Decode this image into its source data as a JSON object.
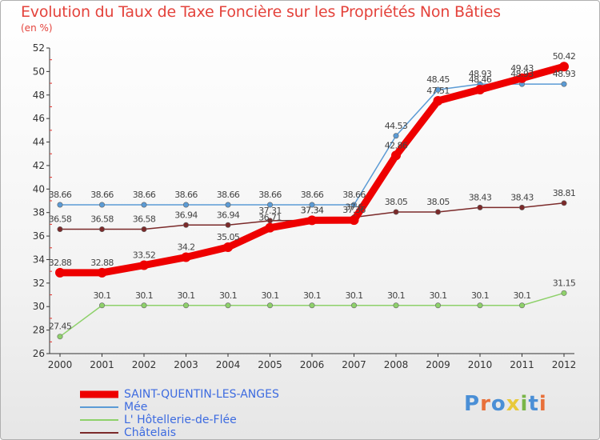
{
  "title": "Evolution du Taux de Taxe Foncière sur les Propriétés Non Bâties",
  "subtitle": "(en %)",
  "logo": {
    "text": "Proxiti",
    "colors": [
      "#4a8fd6",
      "#e8703a",
      "#4a8fd6",
      "#e8c93a",
      "#7ab648",
      "#4a8fd6",
      "#e8703a"
    ]
  },
  "chart_data": {
    "type": "line",
    "title": "Evolution du Taux de Taxe Foncière sur les Propriétés Non Bâties",
    "ylabel": "(en %)",
    "x": [
      "2000",
      "2001",
      "2002",
      "2003",
      "2004",
      "2005",
      "2006",
      "2007",
      "2008",
      "2009",
      "2010",
      "2011",
      "2012"
    ],
    "ylim": [
      26,
      52
    ],
    "yticks": [
      26,
      28,
      30,
      32,
      34,
      36,
      38,
      40,
      42,
      44,
      46,
      48,
      50,
      52
    ],
    "grid": false,
    "legend_position": "bottom-left",
    "series": [
      {
        "name": "SAINT-QUENTIN-LES-ANGES",
        "color": "#ee0000",
        "width": "thick",
        "values": [
          32.88,
          32.88,
          33.52,
          34.2,
          35.05,
          36.71,
          37.34,
          37.36,
          42.86,
          47.51,
          48.46,
          49.43,
          50.42
        ],
        "labels": [
          "32.88",
          "32.88",
          "33.52",
          "34.2",
          "35.05",
          "36.71",
          "37.34",
          "37.36",
          "42.86",
          "47.51",
          "48.46",
          "49.43",
          "50.42"
        ]
      },
      {
        "name": "Mée",
        "color": "#5b9bd5",
        "width": "thin",
        "values": [
          38.66,
          38.66,
          38.66,
          38.66,
          38.66,
          38.66,
          38.66,
          38.66,
          44.53,
          48.45,
          48.93,
          48.93,
          48.93
        ],
        "labels": [
          "38.66",
          "38.66",
          "38.66",
          "38.66",
          "38.66",
          "38.66",
          "38.66",
          "38.66",
          "44.53",
          "48.45",
          "48.93",
          "48.93",
          "48.93"
        ]
      },
      {
        "name": "L' Hôtellerie-de-Flée",
        "color": "#8ed16a",
        "width": "thin",
        "values": [
          27.45,
          30.1,
          30.1,
          30.1,
          30.1,
          30.1,
          30.1,
          30.1,
          30.1,
          30.1,
          30.1,
          30.1,
          31.15
        ],
        "labels": [
          "27.45",
          "30.1",
          "30.1",
          "30.1",
          "30.1",
          "30.1",
          "30.1",
          "30.1",
          "30.1",
          "30.1",
          "30.1",
          "30.1",
          "31.15"
        ]
      },
      {
        "name": "Châtelais",
        "color": "#7b2a2a",
        "width": "thin",
        "values": [
          36.58,
          36.58,
          36.58,
          36.94,
          36.94,
          37.31,
          37.34,
          37.6,
          38.05,
          38.05,
          38.43,
          38.43,
          38.81
        ],
        "labels": [
          "36.58",
          "36.58",
          "36.58",
          "36.94",
          "36.94",
          "37.31",
          "37.34",
          "37.6",
          "38.05",
          "38.05",
          "38.43",
          "38.43",
          "38.81"
        ]
      }
    ]
  }
}
